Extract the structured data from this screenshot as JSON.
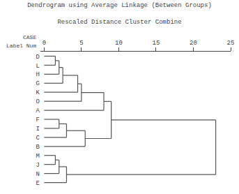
{
  "chart_data": {
    "type": "dendrogram",
    "title": "Dendrogram using Average Linkage (Between Groups)",
    "subtitle": "Rescaled Distance Cluster Combine",
    "annotations": [
      "CASE",
      "Label Num"
    ],
    "categories": [
      "D",
      "L",
      "H",
      "G",
      "K",
      "O",
      "A",
      "F",
      "I",
      "C",
      "B",
      "M",
      "J",
      "N",
      "E"
    ],
    "tree": {
      "distance": 23.0,
      "children": [
        {
          "distance": 9.0,
          "children": [
            {
              "distance": 8.0,
              "children": [
                {
                  "distance": 5.0,
                  "children": [
                    {
                      "distance": 4.5,
                      "children": [
                        {
                          "distance": 2.5,
                          "children": [
                            {
                              "distance": 2.0,
                              "children": [
                                {
                                  "distance": 1.5,
                                  "children": [
                                    "D",
                                    "L"
                                  ]
                                },
                                "H"
                              ]
                            },
                            "G"
                          ]
                        },
                        "K"
                      ]
                    },
                    "O"
                  ]
                },
                "A"
              ]
            },
            {
              "distance": 5.5,
              "children": [
                {
                  "distance": 3.0,
                  "children": [
                    {
                      "distance": 2.0,
                      "children": [
                        "F",
                        "I"
                      ]
                    },
                    "C"
                  ]
                },
                "B"
              ]
            }
          ]
        },
        {
          "distance": 3.0,
          "children": [
            {
              "distance": 2.0,
              "children": [
                {
                  "distance": 1.5,
                  "children": [
                    "M",
                    "J"
                  ]
                },
                "N"
              ]
            },
            "E"
          ]
        }
      ]
    },
    "color": "#555555",
    "xlim": [
      -0.5,
      25
    ],
    "xticks": [
      0,
      5,
      10,
      15,
      20,
      25
    ],
    "grid": false
  }
}
